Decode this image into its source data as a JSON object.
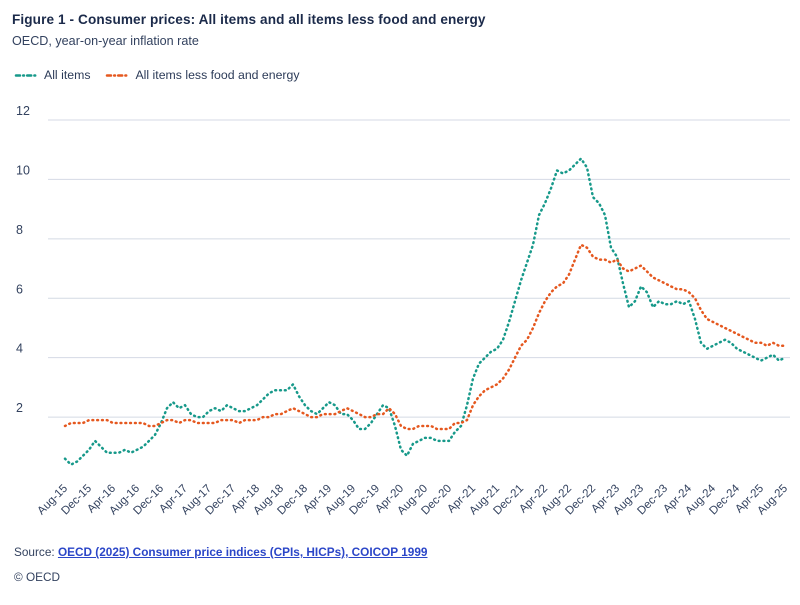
{
  "header": {
    "title": "Figure 1 - Consumer prices: All items and all items less food and energy",
    "subtitle": "OECD, year-on-year inflation rate"
  },
  "legend": [
    {
      "label": "All items",
      "color": "#17998a"
    },
    {
      "label": "All items less food and energy",
      "color": "#e5581f"
    }
  ],
  "chart_data": {
    "type": "line",
    "title": "Consumer prices: All items and all items less food and energy",
    "subtitle": "OECD, year-on-year inflation rate",
    "unit": "percent",
    "frequency": "monthly",
    "x_start_label": "Aug-15",
    "x_end_label": "Aug-25",
    "x_tick_labels": [
      "Aug-15",
      "Dec-15",
      "Apr-16",
      "Aug-16",
      "Dec-16",
      "Apr-17",
      "Aug-17",
      "Dec-17",
      "Apr-18",
      "Aug-18",
      "Dec-18",
      "Apr-19",
      "Aug-19",
      "Dec-19",
      "Apr-20",
      "Aug-20",
      "Dec-20",
      "Apr-21",
      "Aug-21",
      "Dec-21",
      "Apr-22",
      "Aug-22",
      "Dec-22",
      "Apr-23",
      "Aug-23",
      "Dec-23",
      "Apr-24",
      "Aug-24",
      "Dec-24",
      "Apr-25",
      "Aug-25"
    ],
    "x_tick_every_n_points": 4,
    "y_ticks": [
      2,
      4,
      6,
      8,
      10,
      12
    ],
    "ylim": [
      0,
      12.4
    ],
    "grid": true,
    "legend_position": "top-left",
    "gridline_color": "#d4dae4",
    "tick_label_color": "#33425f",
    "series": [
      {
        "name": "All items",
        "color": "#17998a",
        "values": [
          0.6,
          0.4,
          0.5,
          0.7,
          0.9,
          1.2,
          1.0,
          0.8,
          0.8,
          0.8,
          0.9,
          0.8,
          0.9,
          1.0,
          1.2,
          1.4,
          1.8,
          2.3,
          2.5,
          2.3,
          2.4,
          2.1,
          2.0,
          2.0,
          2.2,
          2.3,
          2.2,
          2.4,
          2.3,
          2.2,
          2.2,
          2.3,
          2.4,
          2.6,
          2.8,
          2.9,
          2.9,
          2.9,
          3.1,
          2.7,
          2.4,
          2.2,
          2.1,
          2.3,
          2.5,
          2.4,
          2.1,
          2.1,
          1.9,
          1.6,
          1.6,
          1.8,
          2.1,
          2.4,
          2.3,
          1.7,
          0.9,
          0.7,
          1.1,
          1.2,
          1.3,
          1.3,
          1.2,
          1.2,
          1.2,
          1.5,
          1.7,
          2.4,
          3.3,
          3.8,
          4.0,
          4.2,
          4.3,
          4.6,
          5.2,
          5.9,
          6.6,
          7.2,
          7.8,
          8.8,
          9.2,
          9.7,
          10.3,
          10.2,
          10.3,
          10.5,
          10.7,
          10.4,
          9.4,
          9.2,
          8.8,
          7.7,
          7.4,
          6.5,
          5.7,
          5.9,
          6.4,
          6.2,
          5.7,
          5.9,
          5.8,
          5.8,
          5.9,
          5.8,
          5.9,
          5.3,
          4.5,
          4.3,
          4.4,
          4.5,
          4.6,
          4.5,
          4.3,
          4.2,
          4.1,
          4.0,
          3.9,
          4.0,
          4.1,
          3.9,
          4.0
        ]
      },
      {
        "name": "All items less food and energy",
        "color": "#e5581f",
        "values": [
          1.7,
          1.8,
          1.8,
          1.8,
          1.9,
          1.9,
          1.9,
          1.9,
          1.8,
          1.8,
          1.8,
          1.8,
          1.8,
          1.8,
          1.7,
          1.7,
          1.8,
          1.9,
          1.9,
          1.8,
          1.9,
          1.9,
          1.8,
          1.8,
          1.8,
          1.8,
          1.9,
          1.9,
          1.9,
          1.8,
          1.9,
          1.9,
          1.9,
          2.0,
          2.0,
          2.1,
          2.1,
          2.2,
          2.3,
          2.2,
          2.1,
          2.0,
          2.0,
          2.1,
          2.1,
          2.1,
          2.2,
          2.3,
          2.2,
          2.1,
          2.0,
          2.0,
          2.1,
          2.1,
          2.3,
          2.1,
          1.7,
          1.6,
          1.6,
          1.7,
          1.7,
          1.7,
          1.6,
          1.6,
          1.6,
          1.8,
          1.8,
          1.9,
          2.4,
          2.7,
          2.9,
          3.0,
          3.1,
          3.3,
          3.6,
          4.0,
          4.4,
          4.6,
          5.0,
          5.5,
          5.9,
          6.2,
          6.4,
          6.5,
          6.8,
          7.3,
          7.8,
          7.7,
          7.4,
          7.3,
          7.3,
          7.2,
          7.3,
          7.0,
          6.9,
          7.0,
          7.1,
          6.9,
          6.7,
          6.6,
          6.5,
          6.4,
          6.3,
          6.3,
          6.2,
          6.0,
          5.6,
          5.3,
          5.2,
          5.1,
          5.0,
          4.9,
          4.8,
          4.7,
          4.6,
          4.5,
          4.5,
          4.4,
          4.5,
          4.4,
          4.4
        ]
      }
    ]
  },
  "footer": {
    "source_prefix": "Source: ",
    "source_link": "OECD (2025) Consumer price indices (CPIs, HICPs), COICOP 1999",
    "copyright": "© OECD"
  }
}
